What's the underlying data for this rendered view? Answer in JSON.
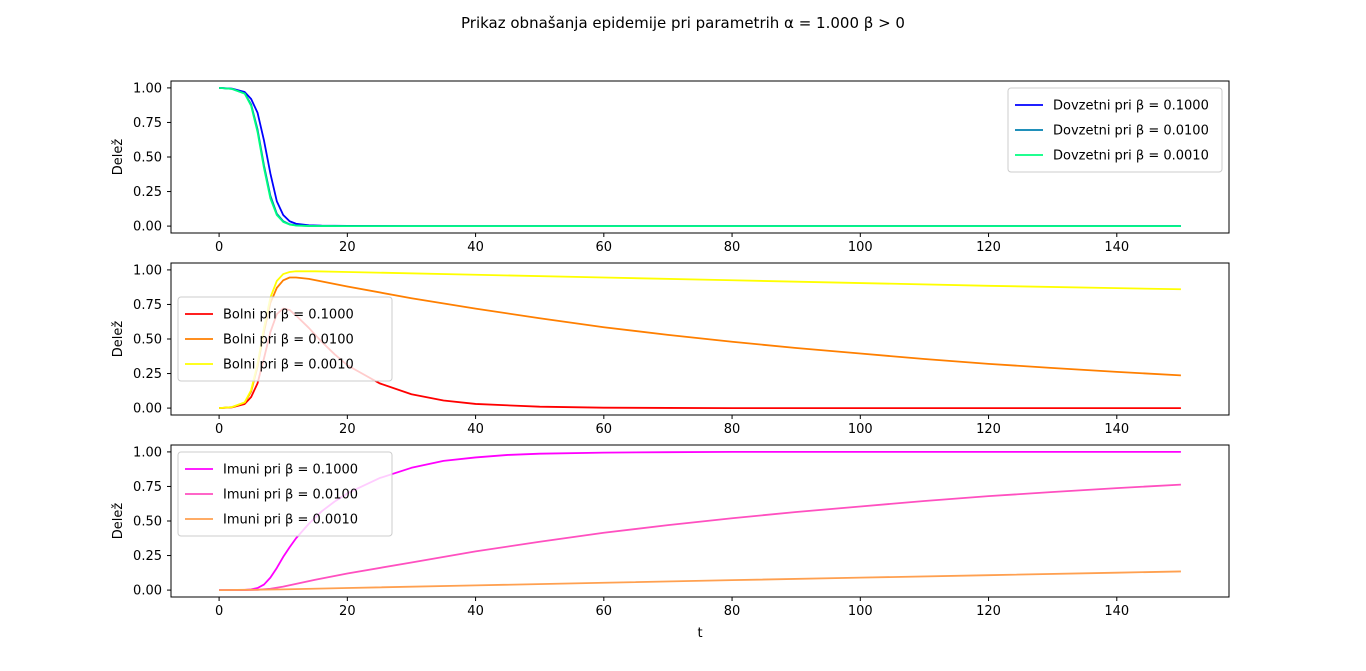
{
  "figure": {
    "title": "Prikaz obnašanja epidemije pri parametrih α = 1.000 β > 0"
  },
  "chart_data": [
    {
      "type": "line",
      "ylabel": "Delež",
      "xlabel": "",
      "xlim": [
        -7.5,
        157.5
      ],
      "ylim": [
        -0.05,
        1.05
      ],
      "xticks": [
        0,
        20,
        40,
        60,
        80,
        100,
        120,
        140
      ],
      "yticks": [
        0.0,
        0.25,
        0.5,
        0.75,
        1.0
      ],
      "xtick_labels": [
        "0",
        "20",
        "40",
        "60",
        "80",
        "100",
        "120",
        "140"
      ],
      "ytick_labels": [
        "0.00",
        "0.25",
        "0.50",
        "0.75",
        "1.00"
      ],
      "legend_position": "upper right",
      "series": [
        {
          "name": "Dovzetni pri β = 0.1000",
          "color": "#0000ff",
          "points": [
            [
              0,
              1.0
            ],
            [
              2,
              0.995
            ],
            [
              4,
              0.97
            ],
            [
              5,
              0.92
            ],
            [
              6,
              0.82
            ],
            [
              7,
              0.62
            ],
            [
              8,
              0.38
            ],
            [
              9,
              0.18
            ],
            [
              10,
              0.08
            ],
            [
              11,
              0.035
            ],
            [
              12,
              0.017
            ],
            [
              14,
              0.006
            ],
            [
              16,
              0.003
            ],
            [
              20,
              0.001
            ],
            [
              30,
              0.0
            ],
            [
              150,
              0.0
            ]
          ]
        },
        {
          "name": "Dovzetni pri β = 0.0100",
          "color": "#0080b0",
          "points": [
            [
              0,
              1.0
            ],
            [
              2,
              0.993
            ],
            [
              4,
              0.96
            ],
            [
              5,
              0.88
            ],
            [
              6,
              0.7
            ],
            [
              7,
              0.44
            ],
            [
              8,
              0.22
            ],
            [
              9,
              0.09
            ],
            [
              10,
              0.035
            ],
            [
              11,
              0.013
            ],
            [
              12,
              0.005
            ],
            [
              14,
              0.001
            ],
            [
              20,
              0.0
            ],
            [
              150,
              0.0
            ]
          ]
        },
        {
          "name": "Dovzetni pri β = 0.0010",
          "color": "#00ff80",
          "points": [
            [
              0,
              1.0
            ],
            [
              2,
              0.993
            ],
            [
              4,
              0.958
            ],
            [
              5,
              0.87
            ],
            [
              6,
              0.68
            ],
            [
              7,
              0.42
            ],
            [
              8,
              0.2
            ],
            [
              9,
              0.08
            ],
            [
              10,
              0.03
            ],
            [
              11,
              0.011
            ],
            [
              12,
              0.004
            ],
            [
              14,
              0.001
            ],
            [
              20,
              0.0
            ],
            [
              150,
              0.0
            ]
          ]
        }
      ]
    },
    {
      "type": "line",
      "ylabel": "Delež",
      "xlabel": "",
      "xlim": [
        -7.5,
        157.5
      ],
      "ylim": [
        -0.05,
        1.05
      ],
      "xticks": [
        0,
        20,
        40,
        60,
        80,
        100,
        120,
        140
      ],
      "yticks": [
        0.0,
        0.25,
        0.5,
        0.75,
        1.0
      ],
      "xtick_labels": [
        "0",
        "20",
        "40",
        "60",
        "80",
        "100",
        "120",
        "140"
      ],
      "ytick_labels": [
        "0.00",
        "0.25",
        "0.50",
        "0.75",
        "1.00"
      ],
      "legend_position": "center left",
      "series": [
        {
          "name": "Bolni pri β = 0.1000",
          "color": "#ff0000",
          "points": [
            [
              0,
              0.0
            ],
            [
              2,
              0.005
            ],
            [
              4,
              0.03
            ],
            [
              5,
              0.08
            ],
            [
              6,
              0.18
            ],
            [
              7,
              0.36
            ],
            [
              8,
              0.55
            ],
            [
              9,
              0.68
            ],
            [
              10,
              0.72
            ],
            [
              11,
              0.71
            ],
            [
              12,
              0.67
            ],
            [
              14,
              0.58
            ],
            [
              16,
              0.48
            ],
            [
              18,
              0.39
            ],
            [
              20,
              0.31
            ],
            [
              25,
              0.18
            ],
            [
              30,
              0.1
            ],
            [
              35,
              0.055
            ],
            [
              40,
              0.03
            ],
            [
              50,
              0.01
            ],
            [
              60,
              0.003
            ],
            [
              70,
              0.001
            ],
            [
              80,
              0.0
            ],
            [
              150,
              0.0
            ]
          ]
        },
        {
          "name": "Bolni pri β = 0.0100",
          "color": "#ff7f00",
          "points": [
            [
              0,
              0.0
            ],
            [
              2,
              0.007
            ],
            [
              4,
              0.04
            ],
            [
              5,
              0.12
            ],
            [
              6,
              0.3
            ],
            [
              7,
              0.55
            ],
            [
              8,
              0.76
            ],
            [
              9,
              0.87
            ],
            [
              10,
              0.925
            ],
            [
              11,
              0.945
            ],
            [
              12,
              0.945
            ],
            [
              14,
              0.935
            ],
            [
              20,
              0.88
            ],
            [
              30,
              0.795
            ],
            [
              40,
              0.72
            ],
            [
              50,
              0.65
            ],
            [
              60,
              0.585
            ],
            [
              70,
              0.53
            ],
            [
              80,
              0.48
            ],
            [
              90,
              0.435
            ],
            [
              100,
              0.395
            ],
            [
              110,
              0.355
            ],
            [
              120,
              0.32
            ],
            [
              130,
              0.29
            ],
            [
              140,
              0.262
            ],
            [
              150,
              0.237
            ]
          ]
        },
        {
          "name": "Bolni pri β = 0.0010",
          "color": "#ffff00",
          "points": [
            [
              0,
              0.0
            ],
            [
              2,
              0.007
            ],
            [
              4,
              0.042
            ],
            [
              5,
              0.13
            ],
            [
              6,
              0.32
            ],
            [
              7,
              0.58
            ],
            [
              8,
              0.8
            ],
            [
              9,
              0.92
            ],
            [
              10,
              0.97
            ],
            [
              11,
              0.985
            ],
            [
              12,
              0.99
            ],
            [
              15,
              0.99
            ],
            [
              20,
              0.985
            ],
            [
              40,
              0.965
            ],
            [
              60,
              0.945
            ],
            [
              80,
              0.925
            ],
            [
              100,
              0.905
            ],
            [
              120,
              0.885
            ],
            [
              140,
              0.868
            ],
            [
              150,
              0.86
            ]
          ]
        }
      ]
    },
    {
      "type": "line",
      "ylabel": "Delež",
      "xlabel": "t",
      "xlim": [
        -7.5,
        157.5
      ],
      "ylim": [
        -0.05,
        1.05
      ],
      "xticks": [
        0,
        20,
        40,
        60,
        80,
        100,
        120,
        140
      ],
      "yticks": [
        0.0,
        0.25,
        0.5,
        0.75,
        1.0
      ],
      "xtick_labels": [
        "0",
        "20",
        "40",
        "60",
        "80",
        "100",
        "120",
        "140"
      ],
      "ytick_labels": [
        "0.00",
        "0.25",
        "0.50",
        "0.75",
        "1.00"
      ],
      "legend_position": "upper left",
      "series": [
        {
          "name": "Imuni pri β = 0.1000",
          "color": "#ff00ff",
          "points": [
            [
              0,
              0.0
            ],
            [
              4,
              0.001
            ],
            [
              5,
              0.005
            ],
            [
              6,
              0.015
            ],
            [
              7,
              0.04
            ],
            [
              8,
              0.09
            ],
            [
              9,
              0.16
            ],
            [
              10,
              0.24
            ],
            [
              11,
              0.31
            ],
            [
              12,
              0.375
            ],
            [
              14,
              0.48
            ],
            [
              16,
              0.57
            ],
            [
              18,
              0.64
            ],
            [
              20,
              0.7
            ],
            [
              25,
              0.81
            ],
            [
              30,
              0.885
            ],
            [
              35,
              0.935
            ],
            [
              40,
              0.96
            ],
            [
              45,
              0.978
            ],
            [
              50,
              0.987
            ],
            [
              60,
              0.995
            ],
            [
              70,
              0.998
            ],
            [
              80,
              1.0
            ],
            [
              150,
              1.0
            ]
          ]
        },
        {
          "name": "Imuni pri β = 0.0100",
          "color": "#ff50c0",
          "points": [
            [
              0,
              0.0
            ],
            [
              4,
              0.0
            ],
            [
              6,
              0.002
            ],
            [
              8,
              0.01
            ],
            [
              10,
              0.025
            ],
            [
              12,
              0.045
            ],
            [
              15,
              0.075
            ],
            [
              20,
              0.12
            ],
            [
              30,
              0.2
            ],
            [
              40,
              0.28
            ],
            [
              50,
              0.35
            ],
            [
              60,
              0.415
            ],
            [
              70,
              0.47
            ],
            [
              80,
              0.52
            ],
            [
              90,
              0.565
            ],
            [
              100,
              0.605
            ],
            [
              110,
              0.645
            ],
            [
              120,
              0.68
            ],
            [
              130,
              0.71
            ],
            [
              140,
              0.738
            ],
            [
              150,
              0.763
            ]
          ]
        },
        {
          "name": "Imuni pri β = 0.0010",
          "color": "#ffa050",
          "points": [
            [
              0,
              0.0
            ],
            [
              10,
              0.005
            ],
            [
              20,
              0.015
            ],
            [
              40,
              0.034
            ],
            [
              60,
              0.053
            ],
            [
              80,
              0.072
            ],
            [
              100,
              0.09
            ],
            [
              120,
              0.108
            ],
            [
              140,
              0.126
            ],
            [
              150,
              0.135
            ]
          ]
        }
      ]
    }
  ]
}
